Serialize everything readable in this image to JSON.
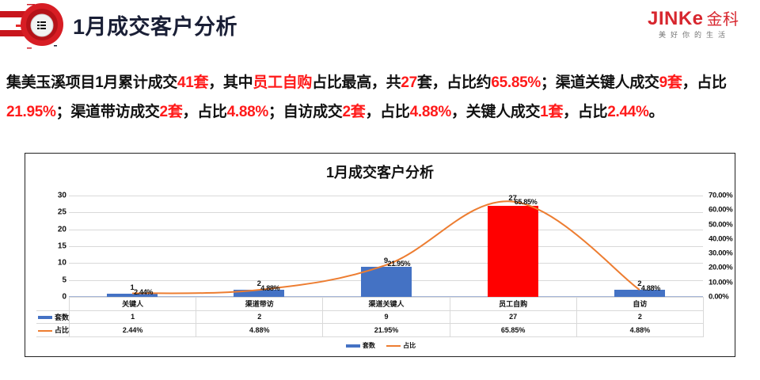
{
  "header": {
    "title": "1月成交客户分析",
    "menu_icon": "list-icon"
  },
  "logo": {
    "brand_en": "JINKe",
    "brand_cn": "金科",
    "tagline": "美好你的生活"
  },
  "summary": {
    "segments": [
      {
        "text": "集美玉溪项目1月累计成交",
        "hl": false
      },
      {
        "text": "41套",
        "hl": true
      },
      {
        "text": "，其中",
        "hl": false
      },
      {
        "text": "员工自购",
        "hl": true
      },
      {
        "text": "占比最高，共",
        "hl": false
      },
      {
        "text": "27",
        "hl": true
      },
      {
        "text": "套，占比约",
        "hl": false
      },
      {
        "text": "65.85%",
        "hl": true
      },
      {
        "text": "；渠道关键人成交",
        "hl": false
      },
      {
        "text": "9套",
        "hl": true
      },
      {
        "text": "，占比",
        "hl": false
      },
      {
        "text": "21.95%",
        "hl": true
      },
      {
        "text": "；渠道带访成交",
        "hl": false
      },
      {
        "text": "2套",
        "hl": true
      },
      {
        "text": "，占比",
        "hl": false
      },
      {
        "text": "4.88%",
        "hl": true
      },
      {
        "text": "；自访成交",
        "hl": false
      },
      {
        "text": "2套",
        "hl": true
      },
      {
        "text": "，占比",
        "hl": false
      },
      {
        "text": "4.88%",
        "hl": true
      },
      {
        "text": "，关键人成交",
        "hl": false
      },
      {
        "text": "1套",
        "hl": true
      },
      {
        "text": "，占比",
        "hl": false
      },
      {
        "text": "2.44%",
        "hl": true
      },
      {
        "text": "。",
        "hl": false
      }
    ]
  },
  "colors": {
    "bar": "#4472c4",
    "bar_highlight": "#ff0000",
    "line": "#ed7d31",
    "highlight_text": "#ff1a1a"
  },
  "chart_data": {
    "type": "bar",
    "combo": "bar+line",
    "title": "1月成交客户分析",
    "categories": [
      "关键人",
      "渠道带访",
      "渠道关键人",
      "员工自购",
      "自访"
    ],
    "series": [
      {
        "name": "套数",
        "type": "bar",
        "axis": "left",
        "values": [
          1,
          2,
          9,
          27,
          2
        ],
        "labels": [
          "1",
          "2",
          "9",
          "27",
          "2"
        ]
      },
      {
        "name": "占比",
        "type": "line",
        "axis": "right",
        "values": [
          2.44,
          4.88,
          21.95,
          65.85,
          4.88
        ],
        "labels": [
          "2.44%",
          "4.88%",
          "21.95%",
          "65.85%",
          "4.88%"
        ]
      }
    ],
    "ylim": [
      0,
      30
    ],
    "yticks": [
      "30",
      "25",
      "20",
      "15",
      "10",
      "5",
      "0"
    ],
    "y2lim": [
      0,
      70
    ],
    "y2ticks": [
      "70.00%",
      "60.00%",
      "50.00%",
      "40.00%",
      "30.00%",
      "20.00%",
      "10.00%",
      "0.00%"
    ],
    "xlabel": "",
    "ylabel": "",
    "grid": true,
    "data_table": true,
    "legend": [
      "套数",
      "占比"
    ],
    "legend_position": "bottom"
  }
}
